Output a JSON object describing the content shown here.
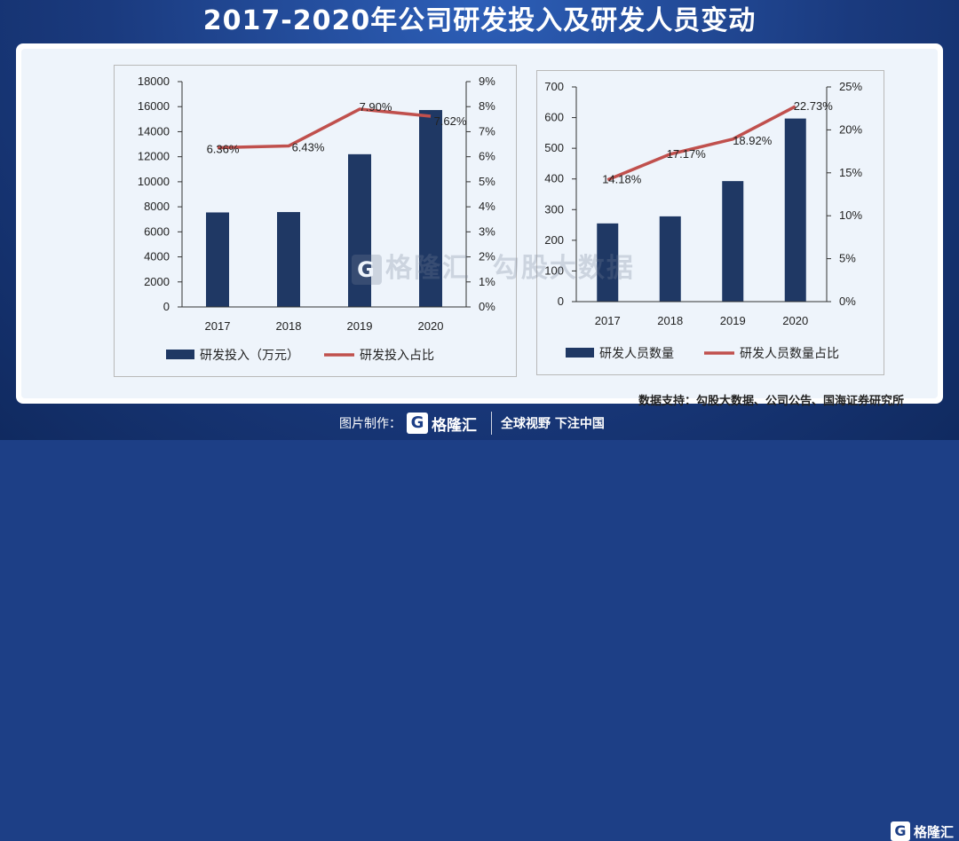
{
  "title": "2017-2020年公司研发投入及研发人员变动",
  "source": "数据支持：勾股大数据、公司公告、国海证券研究所",
  "watermark": "勾股大数据",
  "watermark_logo_text": "格隆汇",
  "footer": {
    "made_by_label": "图片制作：",
    "brand_logo_text": "格隆汇",
    "slogan": "全球视野 下注中国",
    "corner_logo_text": "格隆汇"
  },
  "colors": {
    "bar": "#1f3864",
    "line": "#c0504d"
  },
  "chart_data": [
    {
      "type": "bar",
      "categories": [
        "2017",
        "2018",
        "2019",
        "2020"
      ],
      "series": [
        {
          "name": "研发投入（万元）",
          "type": "bar",
          "axis": "left",
          "values": [
            7550,
            7580,
            12200,
            15730
          ]
        },
        {
          "name": "研发投入占比",
          "type": "line",
          "axis": "right",
          "values": [
            6.36,
            6.43,
            7.9,
            7.62
          ],
          "labels": [
            "6.36%",
            "6.43%",
            "7.90%",
            "7.62%"
          ]
        }
      ],
      "y_left": {
        "min": 0,
        "max": 18000,
        "step": 2000,
        "ticks": [
          "0",
          "2000",
          "4000",
          "6000",
          "8000",
          "10000",
          "12000",
          "14000",
          "16000",
          "18000"
        ]
      },
      "y_right": {
        "min": 0,
        "max": 9,
        "step": 1,
        "ticks": [
          "0%",
          "1%",
          "2%",
          "3%",
          "4%",
          "5%",
          "6%",
          "7%",
          "8%",
          "9%"
        ]
      },
      "legend": "bottom"
    },
    {
      "type": "bar",
      "categories": [
        "2017",
        "2018",
        "2019",
        "2020"
      ],
      "series": [
        {
          "name": "研发人员数量",
          "type": "bar",
          "axis": "left",
          "values": [
            255,
            278,
            393,
            597
          ]
        },
        {
          "name": "研发人员数量占比",
          "type": "line",
          "axis": "right",
          "values": [
            14.18,
            17.17,
            18.92,
            22.73
          ],
          "labels": [
            "14.18%",
            "17.17%",
            "18.92%",
            "22.73%"
          ]
        }
      ],
      "y_left": {
        "min": 0,
        "max": 700,
        "step": 100,
        "ticks": [
          "0",
          "100",
          "200",
          "300",
          "400",
          "500",
          "600",
          "700"
        ]
      },
      "y_right": {
        "min": 0,
        "max": 25,
        "step": 5,
        "ticks": [
          "0%",
          "5%",
          "10%",
          "15%",
          "20%",
          "25%"
        ]
      },
      "legend": "bottom"
    }
  ]
}
